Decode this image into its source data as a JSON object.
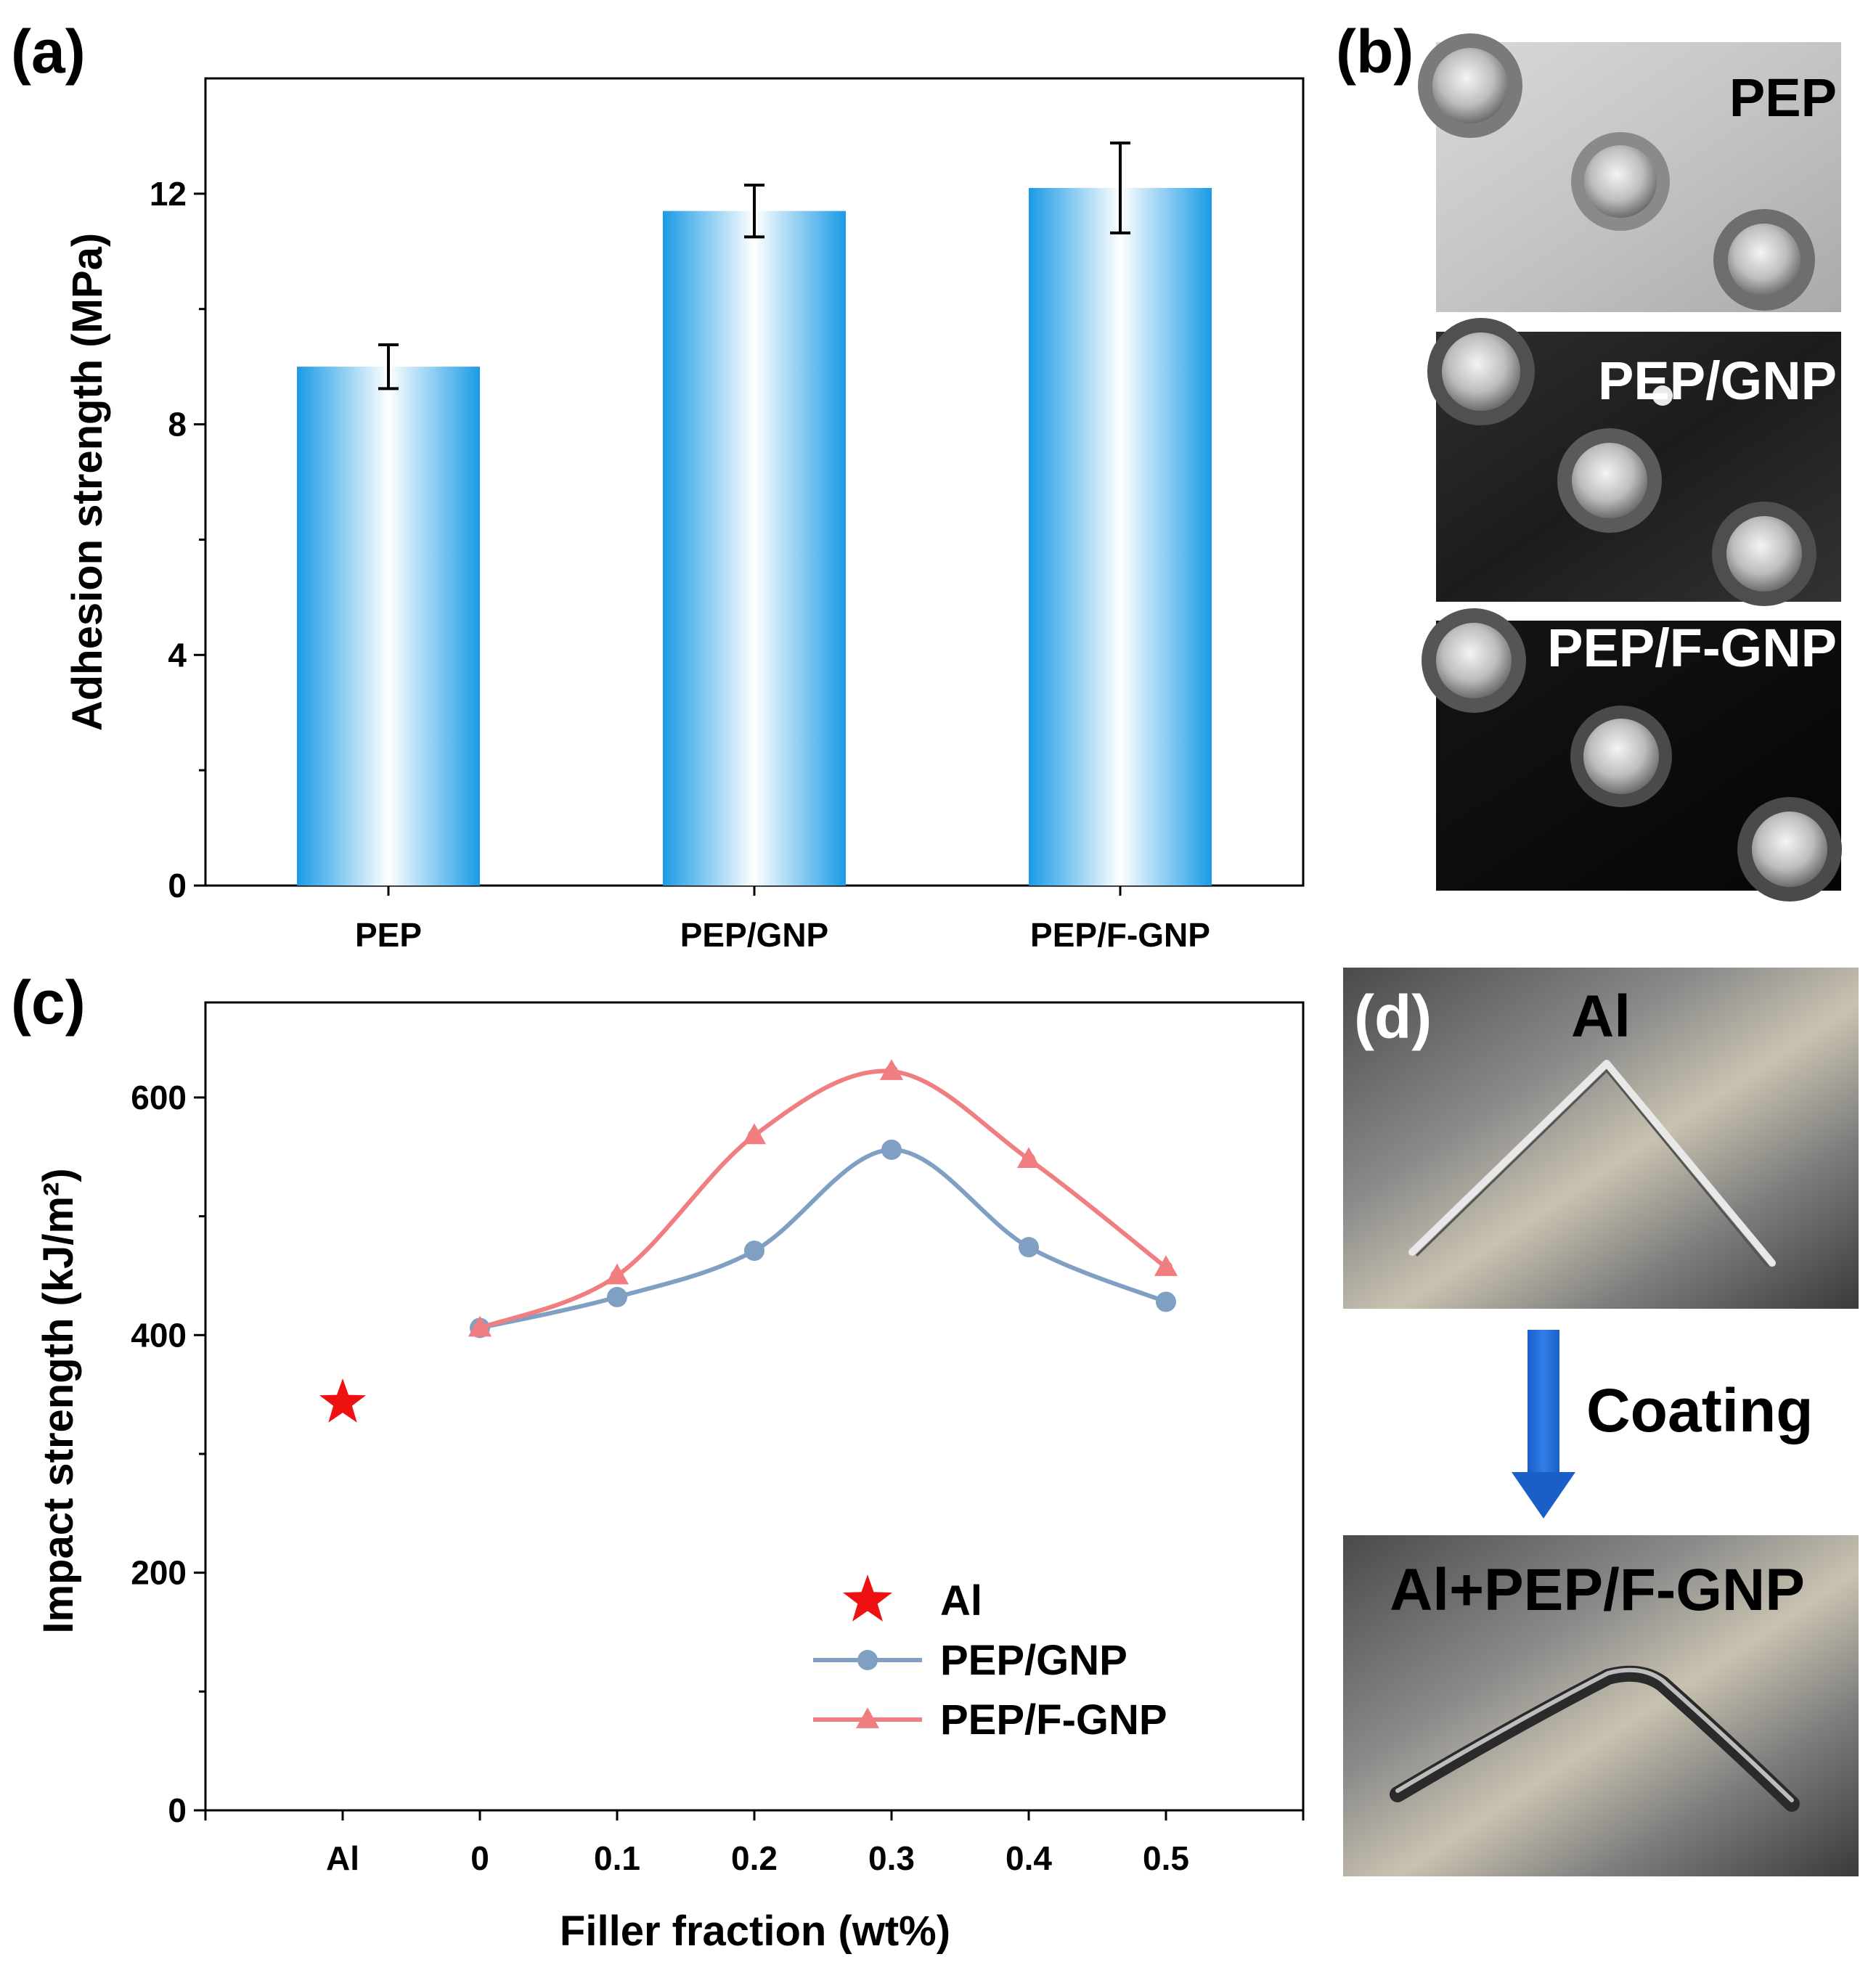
{
  "panels": {
    "a": {
      "label": "(a)"
    },
    "b": {
      "label": "(b)"
    },
    "c": {
      "label": "(c)"
    },
    "d": {
      "label": "(d)"
    }
  },
  "chart_data": [
    {
      "type": "bar",
      "panel": "a",
      "categories": [
        "PEP",
        "PEP/GNP",
        "PEP/F-GNP"
      ],
      "values": [
        9.0,
        11.7,
        12.1
      ],
      "errors": [
        0.38,
        0.45,
        0.78
      ],
      "xlabel": "",
      "ylabel": "Adhesion strength (MPa)",
      "ylim": [
        0,
        14
      ],
      "yticks": [
        0,
        4,
        8,
        12
      ],
      "ytick_labels": [
        "0",
        "4",
        "8",
        "12"
      ],
      "bar_color": "#1a9be6",
      "grid": false
    },
    {
      "type": "line",
      "panel": "c",
      "x_categories": [
        "Al",
        "0",
        "0.1",
        "0.2",
        "0.3",
        "0.4",
        "0.5"
      ],
      "xlabel": "Filler fraction (wt%)",
      "ylabel": "Impact strength (kJ/m²)",
      "ylim": [
        0,
        680
      ],
      "yticks": [
        0,
        200,
        400,
        600
      ],
      "ytick_labels": [
        "0",
        "200",
        "400",
        "600"
      ],
      "grid": false,
      "legend_position": "bottom-right",
      "series": [
        {
          "name": "Al",
          "marker": "star",
          "color": "#ee1111",
          "x": [
            "Al"
          ],
          "values": [
            343
          ]
        },
        {
          "name": "PEP/GNP",
          "marker": "circle",
          "color": "#7f9fc3",
          "x": [
            "0",
            "0.1",
            "0.2",
            "0.3",
            "0.4",
            "0.5"
          ],
          "values": [
            406,
            432,
            471,
            556,
            474,
            428
          ]
        },
        {
          "name": "PEP/F-GNP",
          "marker": "triangle",
          "color": "#f07d80",
          "x": [
            "0",
            "0.1",
            "0.2",
            "0.3",
            "0.4",
            "0.5"
          ],
          "values": [
            406,
            450,
            568,
            622,
            548,
            457
          ]
        }
      ]
    }
  ],
  "photos_b": {
    "labels": [
      "PEP",
      "PEP/GNP",
      "PEP/F-GNP"
    ]
  },
  "photos_d": {
    "top_label": "Al",
    "arrow_label": "Coating",
    "bottom_label": "Al+PEP/F-GNP"
  }
}
